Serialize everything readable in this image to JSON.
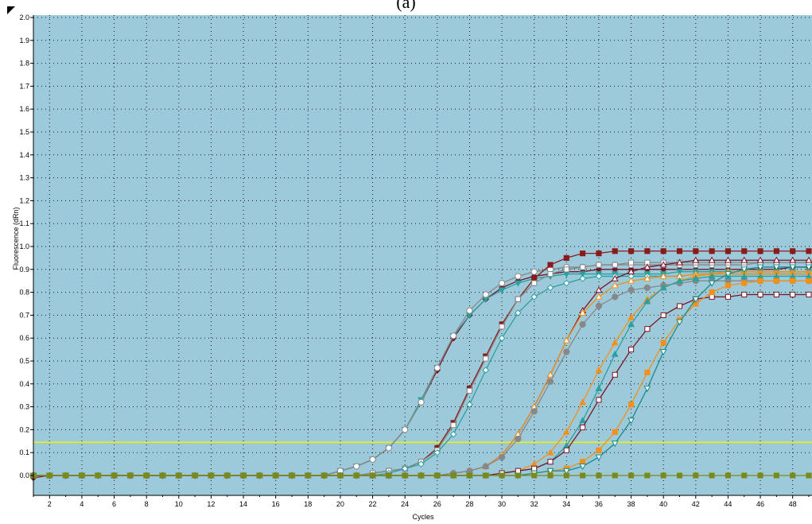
{
  "figure_label": "(a)",
  "colors": {
    "plot_background": "#9ccadb",
    "grid": "#1a1a1a",
    "threshold": "#f2f200",
    "wine": "#7a1526",
    "dark_red": "#8b1a1a",
    "teal": "#2aa0a0",
    "teal_dark": "#1a8a8a",
    "gray": "#888888",
    "orange": "#f39019",
    "olive": "#7a8a1a"
  },
  "chart_data": {
    "type": "line",
    "xlabel": "Cycles",
    "ylabel": "Fluorescence (dRn)",
    "xlim": [
      1,
      49
    ],
    "ylim": [
      -0.05,
      2.0
    ],
    "x_ticks": [
      2,
      4,
      6,
      8,
      10,
      12,
      14,
      16,
      18,
      20,
      22,
      24,
      26,
      28,
      30,
      32,
      34,
      36,
      38,
      40,
      42,
      44,
      46,
      48
    ],
    "y_ticks": [
      "0.0",
      "0.1",
      "0.2",
      "0.3",
      "0.4",
      "0.5",
      "0.6",
      "0.7",
      "0.8",
      "0.9",
      "1.0",
      "1.1",
      "1.2",
      "1.3",
      "1.4",
      "1.5",
      "1.6",
      "1.7",
      "1.8",
      "1.9",
      "2.0"
    ],
    "grid": true,
    "threshold": 0.145,
    "x": [
      1,
      2,
      3,
      4,
      5,
      6,
      7,
      8,
      9,
      10,
      11,
      12,
      13,
      14,
      15,
      16,
      17,
      18,
      19,
      20,
      21,
      22,
      23,
      24,
      25,
      26,
      27,
      28,
      29,
      30,
      31,
      32,
      33,
      34,
      35,
      36,
      37,
      38,
      39,
      40,
      41,
      42,
      43,
      44,
      45,
      46,
      47,
      48,
      49
    ],
    "series": [
      {
        "color": "#7a1526",
        "marker": "diamond",
        "fill": true,
        "values": [
          -0.01,
          0.0,
          0.0,
          0.0,
          0.0,
          0.0,
          0.0,
          0.0,
          0.0,
          0.0,
          0.0,
          0.0,
          0.0,
          0.0,
          0.0,
          0.0,
          0.0,
          0.0,
          0.0,
          0.02,
          0.04,
          0.07,
          0.12,
          0.2,
          0.32,
          0.46,
          0.6,
          0.7,
          0.77,
          0.82,
          0.85,
          0.87,
          0.88,
          0.89,
          0.89,
          0.9,
          0.9,
          0.9,
          0.9,
          0.9,
          0.9,
          0.9,
          0.9,
          0.9,
          0.9,
          0.9,
          0.9,
          0.91,
          0.91
        ]
      },
      {
        "color": "#2aa0a0",
        "marker": "triangle-down",
        "fill": true,
        "values": [
          0.0,
          0.0,
          0.0,
          0.0,
          0.0,
          0.0,
          0.0,
          0.0,
          0.0,
          0.0,
          0.0,
          0.0,
          0.0,
          0.0,
          0.0,
          0.0,
          0.0,
          0.0,
          0.0,
          0.02,
          0.04,
          0.07,
          0.12,
          0.2,
          0.33,
          0.47,
          0.61,
          0.7,
          0.77,
          0.81,
          0.84,
          0.86,
          0.87,
          0.88,
          0.88,
          0.88,
          0.88,
          0.88,
          0.88,
          0.88,
          0.89,
          0.89,
          0.89,
          0.89,
          0.89,
          0.89,
          0.89,
          0.89,
          0.89
        ]
      },
      {
        "color": "#888888",
        "marker": "circle",
        "fill": false,
        "values": [
          0.0,
          0.0,
          0.0,
          0.0,
          0.0,
          0.0,
          0.0,
          0.0,
          0.0,
          0.0,
          0.0,
          0.0,
          0.0,
          0.0,
          0.0,
          0.0,
          0.0,
          0.0,
          0.0,
          0.02,
          0.04,
          0.07,
          0.12,
          0.2,
          0.32,
          0.47,
          0.61,
          0.72,
          0.79,
          0.84,
          0.87,
          0.89,
          0.9,
          0.91,
          0.91,
          0.92,
          0.92,
          0.92,
          0.92,
          0.92,
          0.92,
          0.92,
          0.92,
          0.92,
          0.92,
          0.93,
          0.93,
          0.93,
          0.93
        ]
      },
      {
        "color": "#8b1a1a",
        "marker": "square",
        "fill": true,
        "values": [
          0.0,
          0.0,
          0.0,
          0.0,
          0.0,
          0.0,
          0.0,
          0.0,
          0.0,
          0.0,
          0.0,
          0.0,
          0.0,
          0.0,
          0.0,
          0.0,
          0.0,
          0.0,
          0.0,
          0.0,
          0.0,
          0.01,
          0.02,
          0.03,
          0.06,
          0.12,
          0.23,
          0.38,
          0.52,
          0.66,
          0.77,
          0.86,
          0.92,
          0.95,
          0.97,
          0.97,
          0.98,
          0.98,
          0.98,
          0.98,
          0.98,
          0.98,
          0.98,
          0.98,
          0.98,
          0.98,
          0.98,
          0.98,
          0.98
        ]
      },
      {
        "color": "#888888",
        "marker": "square",
        "fill": false,
        "values": [
          0.0,
          0.0,
          0.0,
          0.0,
          0.0,
          0.0,
          0.0,
          0.0,
          0.0,
          0.0,
          0.0,
          0.0,
          0.0,
          0.0,
          0.0,
          0.0,
          0.0,
          0.0,
          0.0,
          0.0,
          0.0,
          0.01,
          0.02,
          0.03,
          0.06,
          0.11,
          0.22,
          0.37,
          0.51,
          0.65,
          0.77,
          0.84,
          0.88,
          0.9,
          0.91,
          0.92,
          0.92,
          0.93,
          0.93,
          0.93,
          0.93,
          0.93,
          0.93,
          0.93,
          0.93,
          0.93,
          0.93,
          0.93,
          0.93
        ]
      },
      {
        "color": "#2aa0a0",
        "marker": "diamond",
        "fill": false,
        "values": [
          0.0,
          0.0,
          0.0,
          0.0,
          0.0,
          0.0,
          0.0,
          0.0,
          0.0,
          0.0,
          0.0,
          0.0,
          0.0,
          0.0,
          0.0,
          0.0,
          0.0,
          0.0,
          0.0,
          0.0,
          0.0,
          0.0,
          0.01,
          0.03,
          0.05,
          0.1,
          0.18,
          0.31,
          0.46,
          0.6,
          0.71,
          0.78,
          0.82,
          0.84,
          0.86,
          0.87,
          0.87,
          0.87,
          0.87,
          0.87,
          0.87,
          0.88,
          0.88,
          0.88,
          0.88,
          0.88,
          0.88,
          0.88,
          0.88
        ]
      },
      {
        "color": "#7a1526",
        "marker": "triangle-up",
        "fill": false,
        "values": [
          0.0,
          0.0,
          0.0,
          0.0,
          0.0,
          0.0,
          0.0,
          0.0,
          0.0,
          0.0,
          0.0,
          0.0,
          0.0,
          0.0,
          0.0,
          0.0,
          0.0,
          0.0,
          0.0,
          0.0,
          0.0,
          0.0,
          0.0,
          0.0,
          0.0,
          0.0,
          0.01,
          0.02,
          0.04,
          0.09,
          0.18,
          0.3,
          0.44,
          0.59,
          0.72,
          0.81,
          0.86,
          0.89,
          0.91,
          0.92,
          0.93,
          0.94,
          0.94,
          0.94,
          0.94,
          0.94,
          0.94,
          0.94,
          0.94
        ]
      },
      {
        "color": "#f39019",
        "marker": "triangle-up",
        "fill": false,
        "values": [
          0.0,
          0.0,
          0.0,
          0.0,
          0.0,
          0.0,
          0.0,
          0.0,
          0.0,
          0.0,
          0.0,
          0.0,
          0.0,
          0.0,
          0.0,
          0.0,
          0.0,
          0.0,
          0.0,
          0.0,
          0.0,
          0.0,
          0.0,
          0.0,
          0.0,
          0.0,
          0.01,
          0.02,
          0.04,
          0.09,
          0.18,
          0.3,
          0.44,
          0.59,
          0.71,
          0.78,
          0.83,
          0.85,
          0.86,
          0.87,
          0.87,
          0.88,
          0.88,
          0.88,
          0.88,
          0.88,
          0.88,
          0.88,
          0.88
        ]
      },
      {
        "color": "#888888",
        "marker": "circle",
        "fill": true,
        "values": [
          0.0,
          0.0,
          0.0,
          0.0,
          0.0,
          0.0,
          0.0,
          0.0,
          0.0,
          0.0,
          0.0,
          0.0,
          0.0,
          0.0,
          0.0,
          0.0,
          0.0,
          0.0,
          0.0,
          0.0,
          0.0,
          0.0,
          0.0,
          0.0,
          0.0,
          0.0,
          0.01,
          0.02,
          0.04,
          0.08,
          0.16,
          0.28,
          0.41,
          0.54,
          0.66,
          0.74,
          0.78,
          0.81,
          0.82,
          0.83,
          0.84,
          0.85,
          0.85,
          0.85,
          0.85,
          0.85,
          0.85,
          0.85,
          0.85
        ]
      },
      {
        "color": "#f39019",
        "marker": "triangle-up",
        "fill": true,
        "values": [
          0.0,
          0.0,
          0.0,
          0.0,
          0.0,
          0.0,
          0.0,
          0.0,
          0.0,
          0.0,
          0.0,
          0.0,
          0.0,
          0.0,
          0.0,
          0.0,
          0.0,
          0.0,
          0.0,
          0.0,
          0.0,
          0.0,
          0.0,
          0.0,
          0.0,
          0.0,
          0.0,
          0.0,
          0.0,
          0.01,
          0.02,
          0.05,
          0.1,
          0.19,
          0.32,
          0.46,
          0.58,
          0.69,
          0.77,
          0.82,
          0.85,
          0.87,
          0.88,
          0.89,
          0.89,
          0.89,
          0.89,
          0.89,
          0.89
        ]
      },
      {
        "color": "#2aa0a0",
        "marker": "triangle-up",
        "fill": true,
        "values": [
          0.0,
          0.0,
          0.0,
          0.0,
          0.0,
          0.0,
          0.0,
          0.0,
          0.0,
          0.0,
          0.0,
          0.0,
          0.0,
          0.0,
          0.0,
          0.0,
          0.0,
          0.0,
          0.0,
          0.0,
          0.0,
          0.0,
          0.0,
          0.0,
          0.0,
          0.0,
          0.0,
          0.0,
          0.0,
          0.01,
          0.02,
          0.03,
          0.06,
          0.13,
          0.24,
          0.38,
          0.53,
          0.66,
          0.76,
          0.82,
          0.85,
          0.86,
          0.87,
          0.87,
          0.87,
          0.87,
          0.87,
          0.87,
          0.87
        ]
      },
      {
        "color": "#7a1526",
        "marker": "square",
        "fill": false,
        "values": [
          0.0,
          0.0,
          0.0,
          0.0,
          0.0,
          0.0,
          0.0,
          0.0,
          0.0,
          0.0,
          0.0,
          0.0,
          0.0,
          0.0,
          0.0,
          0.0,
          0.0,
          0.0,
          0.0,
          0.0,
          0.0,
          0.0,
          0.0,
          0.0,
          0.0,
          0.0,
          0.0,
          0.0,
          0.0,
          0.01,
          0.02,
          0.03,
          0.06,
          0.11,
          0.21,
          0.33,
          0.44,
          0.55,
          0.64,
          0.7,
          0.74,
          0.77,
          0.78,
          0.78,
          0.79,
          0.79,
          0.79,
          0.79,
          0.79
        ]
      },
      {
        "color": "#f39019",
        "marker": "square",
        "fill": true,
        "values": [
          0.0,
          0.0,
          0.0,
          0.0,
          0.0,
          0.0,
          0.0,
          0.0,
          0.0,
          0.0,
          0.0,
          0.0,
          0.0,
          0.0,
          0.0,
          0.0,
          0.0,
          0.0,
          0.0,
          0.0,
          0.0,
          0.0,
          0.0,
          0.0,
          0.0,
          0.0,
          0.0,
          0.0,
          0.0,
          0.0,
          0.0,
          0.01,
          0.02,
          0.03,
          0.06,
          0.11,
          0.19,
          0.31,
          0.45,
          0.58,
          0.68,
          0.75,
          0.8,
          0.83,
          0.84,
          0.85,
          0.85,
          0.85,
          0.85
        ]
      },
      {
        "color": "#1a8a8a",
        "marker": "triangle-down",
        "fill": false,
        "values": [
          0.0,
          0.0,
          0.0,
          0.0,
          0.0,
          0.0,
          0.0,
          0.0,
          0.0,
          0.0,
          0.0,
          0.0,
          0.0,
          0.0,
          0.0,
          0.0,
          0.0,
          0.0,
          0.0,
          0.0,
          0.0,
          0.0,
          0.0,
          0.0,
          0.0,
          0.0,
          0.0,
          0.0,
          0.0,
          0.0,
          0.0,
          0.01,
          0.02,
          0.02,
          0.04,
          0.08,
          0.14,
          0.24,
          0.38,
          0.54,
          0.67,
          0.77,
          0.84,
          0.88,
          0.9,
          0.91,
          0.91,
          0.91,
          0.91
        ]
      },
      {
        "color": "#7a8a1a",
        "marker": "square",
        "fill": true,
        "values": [
          0.0,
          0.0,
          0.0,
          0.0,
          0.0,
          0.0,
          0.0,
          0.0,
          0.0,
          0.0,
          0.0,
          0.0,
          0.0,
          0.0,
          0.0,
          0.0,
          0.0,
          0.0,
          0.0,
          0.0,
          0.0,
          0.0,
          0.0,
          0.0,
          0.0,
          0.0,
          0.0,
          0.0,
          0.0,
          0.0,
          0.0,
          0.0,
          0.0,
          0.0,
          0.0,
          0.0,
          0.0,
          0.0,
          0.0,
          0.0,
          0.0,
          0.0,
          0.0,
          0.0,
          0.0,
          0.0,
          0.0,
          0.0,
          0.0
        ]
      }
    ]
  }
}
